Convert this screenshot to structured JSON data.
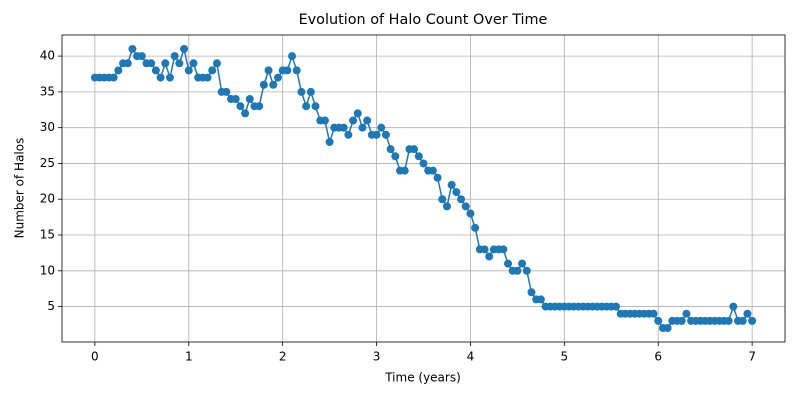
{
  "chart_data": {
    "type": "line",
    "title": "Evolution of Halo Count Over Time",
    "xlabel": "Time (years)",
    "ylabel": "Number of Halos",
    "x": [
      0,
      0.05,
      0.1,
      0.15,
      0.2,
      0.25,
      0.3,
      0.35,
      0.4,
      0.45,
      0.5,
      0.55,
      0.6,
      0.65,
      0.7,
      0.75,
      0.8,
      0.85,
      0.9,
      0.95,
      1,
      1.05,
      1.1,
      1.15,
      1.2,
      1.25,
      1.3,
      1.35,
      1.4,
      1.45,
      1.5,
      1.55,
      1.6,
      1.65,
      1.7,
      1.75,
      1.8,
      1.85,
      1.9,
      1.95,
      2,
      2.05,
      2.1,
      2.15,
      2.2,
      2.25,
      2.3,
      2.35,
      2.4,
      2.45,
      2.5,
      2.55,
      2.6,
      2.65,
      2.7,
      2.75,
      2.8,
      2.85,
      2.9,
      2.95,
      3,
      3.05,
      3.1,
      3.15,
      3.2,
      3.25,
      3.3,
      3.35,
      3.4,
      3.45,
      3.5,
      3.55,
      3.6,
      3.65,
      3.7,
      3.75,
      3.8,
      3.85,
      3.9,
      3.95,
      4,
      4.05,
      4.1,
      4.15,
      4.2,
      4.25,
      4.3,
      4.35,
      4.4,
      4.45,
      4.5,
      4.55,
      4.6,
      4.65,
      4.7,
      4.75,
      4.8,
      4.85,
      4.9,
      4.95,
      5,
      5.05,
      5.1,
      5.15,
      5.2,
      5.25,
      5.3,
      5.35,
      5.4,
      5.45,
      5.5,
      5.55,
      5.6,
      5.65,
      5.7,
      5.75,
      5.8,
      5.85,
      5.9,
      5.95,
      6,
      6.05,
      6.1,
      6.15,
      6.2,
      6.25,
      6.3,
      6.35,
      6.4,
      6.45,
      6.5,
      6.55,
      6.6,
      6.65,
      6.7,
      6.75,
      6.8,
      6.85,
      6.9,
      6.95,
      7
    ],
    "series": [
      {
        "color": "#1f77b4",
        "values": [
          37,
          37,
          37,
          37,
          37,
          38,
          39,
          39,
          41,
          40,
          40,
          39,
          39,
          38,
          37,
          39,
          37,
          40,
          39,
          41,
          38,
          39,
          37,
          37,
          37,
          38,
          39,
          35,
          35,
          34,
          34,
          33,
          32,
          34,
          33,
          33,
          36,
          38,
          36,
          37,
          38,
          38,
          40,
          38,
          35,
          33,
          35,
          33,
          31,
          31,
          28,
          30,
          30,
          30,
          29,
          31,
          32,
          30,
          31,
          29,
          29,
          30,
          29,
          27,
          26,
          24,
          24,
          27,
          27,
          26,
          25,
          24,
          24,
          23,
          20,
          19,
          22,
          21,
          20,
          19,
          18,
          16,
          13,
          13,
          12,
          13,
          13,
          13,
          11,
          10,
          10,
          11,
          10,
          7,
          6,
          6,
          5,
          5,
          5,
          5,
          5,
          5,
          5,
          5,
          5,
          5,
          5,
          5,
          5,
          5,
          5,
          5,
          4,
          4,
          4,
          4,
          4,
          4,
          4,
          4,
          3,
          2,
          2,
          3,
          3,
          3,
          4,
          3,
          3,
          3,
          3,
          3,
          3,
          3,
          3,
          3,
          5,
          3,
          3,
          4,
          3
        ]
      }
    ],
    "xlim": [
      -0.35,
      7.35
    ],
    "ylim": [
      0.05,
      42.95
    ],
    "xticks": [
      0,
      1,
      2,
      3,
      4,
      5,
      6,
      7
    ],
    "yticks": [
      5,
      10,
      15,
      20,
      25,
      30,
      35,
      40
    ],
    "grid": true
  }
}
